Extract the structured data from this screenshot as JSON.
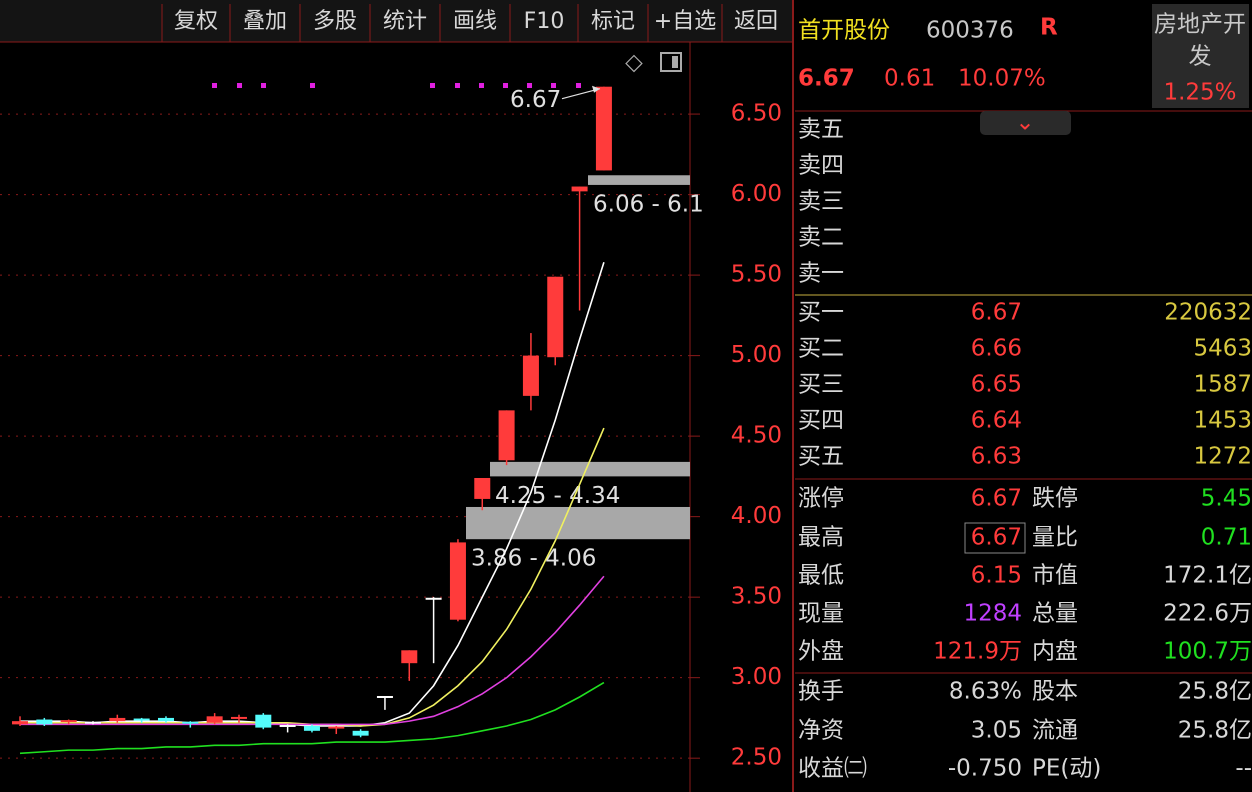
{
  "toolbar": [
    "复权",
    "叠加",
    "多股",
    "统计",
    "画线",
    "F10",
    "标记",
    "+自选",
    "返回"
  ],
  "chart_data": {
    "type": "candlestick",
    "ylim": [
      2.29,
      6.96
    ],
    "yticks": [
      {
        "value": 2.5,
        "label": "2.50"
      },
      {
        "value": 3.0,
        "label": "3.00"
      },
      {
        "value": 3.5,
        "label": "3.50"
      },
      {
        "value": 4.0,
        "label": "4.00"
      },
      {
        "value": 4.5,
        "label": "4.50"
      },
      {
        "value": 5.0,
        "label": "5.00"
      },
      {
        "value": 5.5,
        "label": "5.50"
      },
      {
        "value": 6.0,
        "label": "6.00"
      },
      {
        "value": 6.5,
        "label": "6.50"
      }
    ],
    "grid": true,
    "up_color": "#ff3b3b",
    "down_color": "#54fcfc",
    "flat_color": "#ffffff",
    "open": [
      2.71,
      2.74,
      2.72,
      2.72,
      2.73,
      2.74,
      2.75,
      2.72,
      2.72,
      2.74,
      2.77,
      2.7,
      2.7,
      2.68,
      2.67,
      2.88,
      3.09,
      3.49,
      3.36,
      4.11,
      4.35,
      4.75,
      4.99,
      6.02,
      6.15
    ],
    "high": [
      2.76,
      2.75,
      2.74,
      2.73,
      2.77,
      2.75,
      2.76,
      2.73,
      2.78,
      2.77,
      2.78,
      2.71,
      2.71,
      2.7,
      2.68,
      2.88,
      3.17,
      3.5,
      3.86,
      4.24,
      4.66,
      5.14,
      5.49,
      6.05,
      6.67
    ],
    "low": [
      2.7,
      2.7,
      2.71,
      2.71,
      2.72,
      2.72,
      2.72,
      2.69,
      2.71,
      2.72,
      2.68,
      2.66,
      2.66,
      2.65,
      2.63,
      2.8,
      2.98,
      3.09,
      3.35,
      4.04,
      4.32,
      4.66,
      4.94,
      5.28,
      6.15
    ],
    "close": [
      2.73,
      2.71,
      2.73,
      2.72,
      2.75,
      2.73,
      2.73,
      2.71,
      2.76,
      2.75,
      2.69,
      2.7,
      2.67,
      2.69,
      2.64,
      2.88,
      3.17,
      3.49,
      3.84,
      4.24,
      4.66,
      5.0,
      5.49,
      6.05,
      6.67
    ],
    "series": [
      {
        "color": "#ffffff",
        "values": [
          2.73,
          2.73,
          2.73,
          2.72,
          2.73,
          2.73,
          2.73,
          2.72,
          2.73,
          2.73,
          2.72,
          2.71,
          2.7,
          2.7,
          2.7,
          2.72,
          2.78,
          2.95,
          3.2,
          3.5,
          3.8,
          4.15,
          4.6,
          5.1,
          5.58
        ]
      },
      {
        "color": "#f0f060",
        "values": [
          2.72,
          2.72,
          2.72,
          2.72,
          2.72,
          2.72,
          2.72,
          2.72,
          2.72,
          2.72,
          2.72,
          2.72,
          2.71,
          2.71,
          2.7,
          2.71,
          2.75,
          2.83,
          2.95,
          3.1,
          3.3,
          3.55,
          3.85,
          4.2,
          4.55
        ]
      },
      {
        "color": "#e040e0",
        "values": [
          2.71,
          2.71,
          2.71,
          2.71,
          2.71,
          2.71,
          2.71,
          2.71,
          2.71,
          2.71,
          2.71,
          2.71,
          2.71,
          2.71,
          2.71,
          2.71,
          2.73,
          2.76,
          2.82,
          2.9,
          3.0,
          3.13,
          3.28,
          3.45,
          3.63
        ]
      },
      {
        "color": "#20e020",
        "values": [
          2.53,
          2.54,
          2.55,
          2.55,
          2.56,
          2.56,
          2.57,
          2.57,
          2.58,
          2.58,
          2.59,
          2.59,
          2.59,
          2.6,
          2.6,
          2.6,
          2.61,
          2.62,
          2.64,
          2.67,
          2.7,
          2.74,
          2.8,
          2.88,
          2.97
        ]
      }
    ],
    "last_price": 6.67,
    "zones": [
      {
        "low": 6.06,
        "high": 6.12,
        "label": "6.06 - 6.1"
      },
      {
        "low": 4.25,
        "high": 4.34,
        "label": "4.25 - 4.34"
      },
      {
        "low": 3.86,
        "high": 4.06,
        "label": "3.86 - 4.06"
      }
    ]
  },
  "quote": {
    "name": "首开股份",
    "code": "600376",
    "flag": "R",
    "price": "6.67",
    "change": "0.61",
    "pct": "10.07%"
  },
  "sector": {
    "name": "房地产开",
    "name2": "发",
    "pct": "1.25%"
  },
  "asks": [
    "卖五",
    "卖四",
    "卖三",
    "卖二",
    "卖一"
  ],
  "bids": [
    [
      "买一",
      "6.67",
      "220632"
    ],
    [
      "买二",
      "6.66",
      "5463"
    ],
    [
      "买三",
      "6.65",
      "1587"
    ],
    [
      "买四",
      "6.64",
      "1453"
    ],
    [
      "买五",
      "6.63",
      "1272"
    ]
  ],
  "stats": [
    [
      "涨停",
      "6.67",
      "跌停",
      "5.45"
    ],
    [
      "最高",
      "6.67",
      "量比",
      "0.71"
    ],
    [
      "最低",
      "6.15",
      "市值",
      "172.1亿"
    ],
    [
      "现量",
      "1284",
      "总量",
      "222.6万"
    ],
    [
      "外盘",
      "121.9万",
      "内盘",
      "100.7万"
    ],
    [
      "换手",
      "8.63%",
      "股本",
      "25.8亿"
    ],
    [
      "净资",
      "3.05",
      "流通",
      "25.8亿"
    ],
    [
      "收益㈡",
      "-0.750",
      "PE(动)",
      "--"
    ]
  ]
}
